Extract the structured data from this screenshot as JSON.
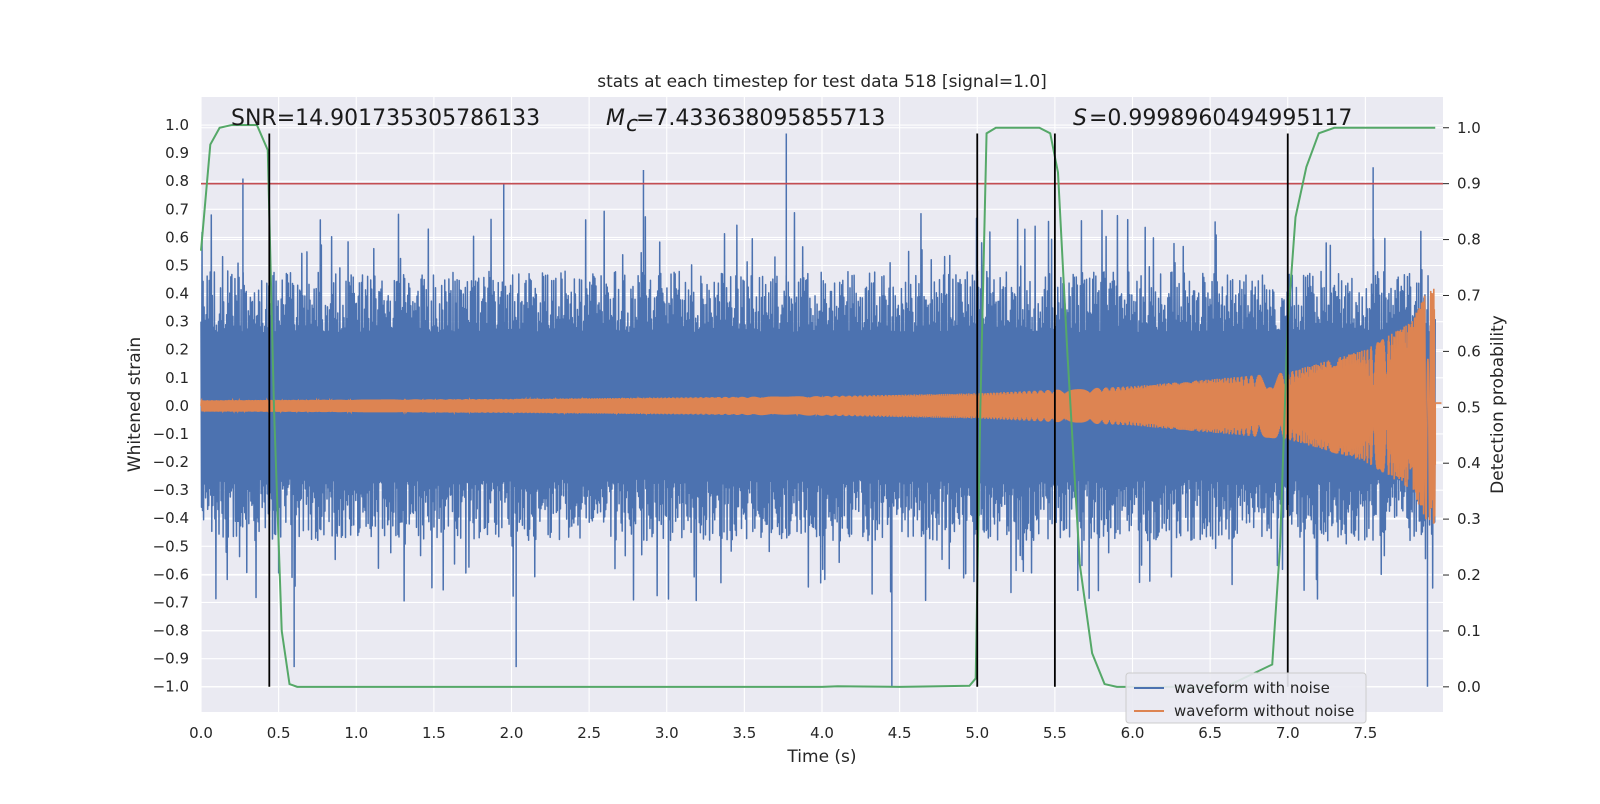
{
  "chart_data": {
    "type": "line",
    "title": "stats at each timestep for test data 518 [signal=1.0]",
    "xlabel": "Time (s)",
    "ylabel_left": "Whitened strain",
    "ylabel_right": "Detection probability",
    "xlim": [
      0.0,
      8.0
    ],
    "ylim_left": [
      -1.09,
      1.1
    ],
    "ylim_right": [
      -0.045,
      1.055
    ],
    "x_ticks": [
      "0.0",
      "0.5",
      "1.0",
      "1.5",
      "2.0",
      "2.5",
      "3.0",
      "3.5",
      "4.0",
      "4.5",
      "5.0",
      "5.5",
      "6.0",
      "6.5",
      "7.0",
      "7.5"
    ],
    "x_tick_values": [
      0.0,
      0.5,
      1.0,
      1.5,
      2.0,
      2.5,
      3.0,
      3.5,
      4.0,
      4.5,
      5.0,
      5.5,
      6.0,
      6.5,
      7.0,
      7.5
    ],
    "y_ticks_left": [
      "1.0",
      "0.9",
      "0.8",
      "0.7",
      "0.6",
      "0.5",
      "0.4",
      "0.3",
      "0.2",
      "0.1",
      "0.0",
      "−0.1",
      "−0.2",
      "−0.3",
      "−0.4",
      "−0.5",
      "−0.6",
      "−0.7",
      "−0.8",
      "−0.9",
      "−1.0"
    ],
    "y_tick_values_left": [
      1.0,
      0.9,
      0.8,
      0.7,
      0.6,
      0.5,
      0.4,
      0.3,
      0.2,
      0.1,
      0.0,
      -0.1,
      -0.2,
      -0.3,
      -0.4,
      -0.5,
      -0.6,
      -0.7,
      -0.8,
      -0.9,
      -1.0
    ],
    "y_ticks_right": [
      "1.0",
      "0.9",
      "0.8",
      "0.7",
      "0.6",
      "0.5",
      "0.4",
      "0.3",
      "0.2",
      "0.1",
      "0.0"
    ],
    "y_tick_values_right": [
      1.0,
      0.9,
      0.8,
      0.7,
      0.6,
      0.5,
      0.4,
      0.3,
      0.2,
      0.1,
      0.0
    ],
    "annotations": {
      "snr": "SNR=14.901735305786133",
      "mc": "=7.433638095855713",
      "mc_symbol": "M",
      "mc_subscript": "c",
      "s": "=0.9998960494995117",
      "s_symbol": "S"
    },
    "grid": true,
    "legend_position": "lower-right",
    "series": [
      {
        "name": "waveform with noise",
        "color": "#4c72b0",
        "axis": "left",
        "kind": "noisy strain",
        "duration_s": 7.95,
        "typical_envelope": 0.4,
        "notable_peaks": [
          {
            "x": 0.27,
            "y": 0.81
          },
          {
            "x": 1.95,
            "y": 0.79
          },
          {
            "x": 2.85,
            "y": 0.84
          },
          {
            "x": 3.77,
            "y": 0.97
          },
          {
            "x": 7.55,
            "y": 0.85
          },
          {
            "x": 0.6,
            "y": -0.93
          },
          {
            "x": 2.03,
            "y": -0.93
          },
          {
            "x": 4.45,
            "y": -1.0
          },
          {
            "x": 7.9,
            "y": -1.0
          }
        ]
      },
      {
        "name": "waveform without noise",
        "color": "#dd8452",
        "axis": "left",
        "kind": "chirp",
        "x_end": 7.95,
        "envelope": [
          {
            "t": 0.0,
            "a": 0.02
          },
          {
            "t": 2.0,
            "a": 0.025
          },
          {
            "t": 4.0,
            "a": 0.035
          },
          {
            "t": 5.0,
            "a": 0.045
          },
          {
            "t": 6.0,
            "a": 0.07
          },
          {
            "t": 7.0,
            "a": 0.12
          },
          {
            "t": 7.5,
            "a": 0.2
          },
          {
            "t": 7.8,
            "a": 0.3
          },
          {
            "t": 7.9,
            "a": 0.42
          }
        ]
      },
      {
        "color": "#55a868",
        "axis": "right",
        "points": [
          [
            0.0,
            0.78
          ],
          [
            0.06,
            0.97
          ],
          [
            0.12,
            1.0
          ],
          [
            0.2,
            1.005
          ],
          [
            0.36,
            1.005
          ],
          [
            0.43,
            0.96
          ],
          [
            0.47,
            0.5
          ],
          [
            0.52,
            0.1
          ],
          [
            0.57,
            0.005
          ],
          [
            0.62,
            0.0
          ],
          [
            1.0,
            0.0
          ],
          [
            2.0,
            0.0
          ],
          [
            3.0,
            0.0
          ],
          [
            4.0,
            0.0
          ],
          [
            4.1,
            0.001
          ],
          [
            4.5,
            0.0
          ],
          [
            4.95,
            0.002
          ],
          [
            4.99,
            0.015
          ],
          [
            5.02,
            0.5
          ],
          [
            5.06,
            0.99
          ],
          [
            5.12,
            1.0
          ],
          [
            5.4,
            1.0
          ],
          [
            5.47,
            0.99
          ],
          [
            5.52,
            0.92
          ],
          [
            5.58,
            0.6
          ],
          [
            5.66,
            0.22
          ],
          [
            5.74,
            0.06
          ],
          [
            5.82,
            0.005
          ],
          [
            5.9,
            0.0
          ],
          [
            6.2,
            0.0
          ],
          [
            6.6,
            0.0
          ],
          [
            6.9,
            0.04
          ],
          [
            6.95,
            0.25
          ],
          [
            7.0,
            0.65
          ],
          [
            7.05,
            0.84
          ],
          [
            7.12,
            0.93
          ],
          [
            7.2,
            0.99
          ],
          [
            7.3,
            1.0
          ],
          [
            7.95,
            1.0
          ]
        ]
      }
    ],
    "horizontal_line": {
      "value_right": 0.9,
      "color": "#c44e52"
    },
    "vertical_lines": [
      0.44,
      5.0,
      5.5,
      7.0
    ],
    "vertical_line_range_left": [
      -1.0,
      0.97
    ],
    "legend": [
      "waveform with noise",
      "waveform without noise"
    ]
  }
}
